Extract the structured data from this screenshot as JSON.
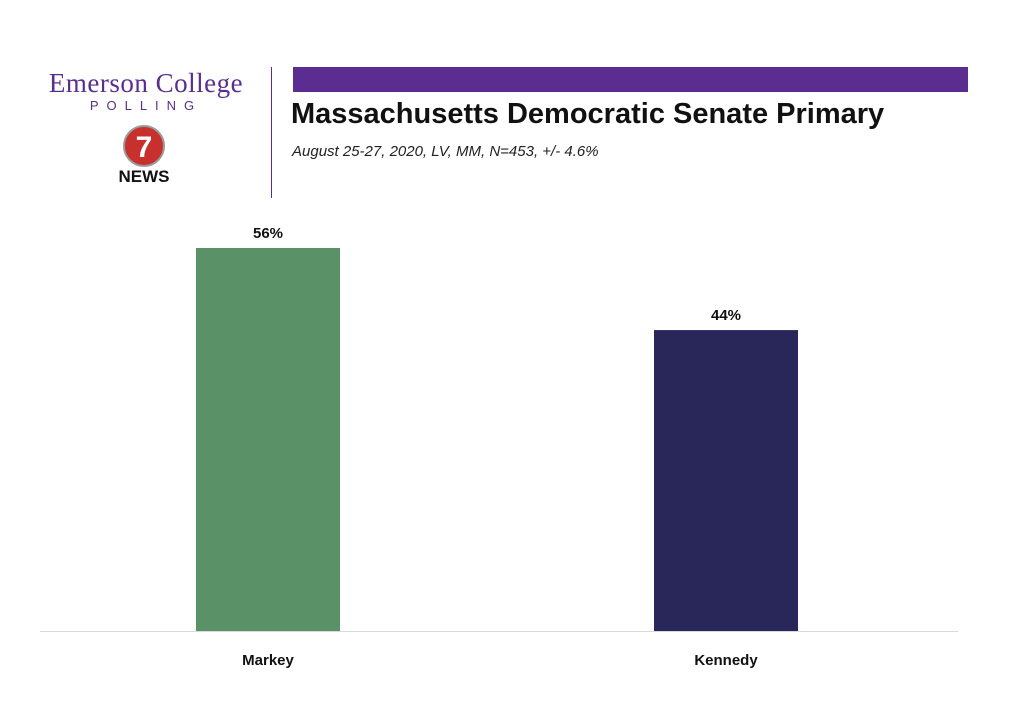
{
  "logo": {
    "org_name": "Emerson College",
    "org_sub": "POLLING",
    "partner_number": "7",
    "partner_name": "NEWS"
  },
  "colors": {
    "accent_purple": "#5b2d91",
    "markey": "#5a9167",
    "kennedy": "#29275a"
  },
  "chart_data": {
    "type": "bar",
    "title": "Massachusetts Democratic Senate Primary",
    "subtitle": "August 25-27, 2020, LV, MM, N=453, +/- 4.6%",
    "categories": [
      "Markey",
      "Kennedy"
    ],
    "values": [
      56,
      44
    ],
    "data_labels": [
      "56%",
      "44%"
    ],
    "bar_colors": [
      "#5a9167",
      "#29275a"
    ],
    "ylim": [
      0,
      56
    ],
    "grid": false,
    "legend": "none"
  }
}
